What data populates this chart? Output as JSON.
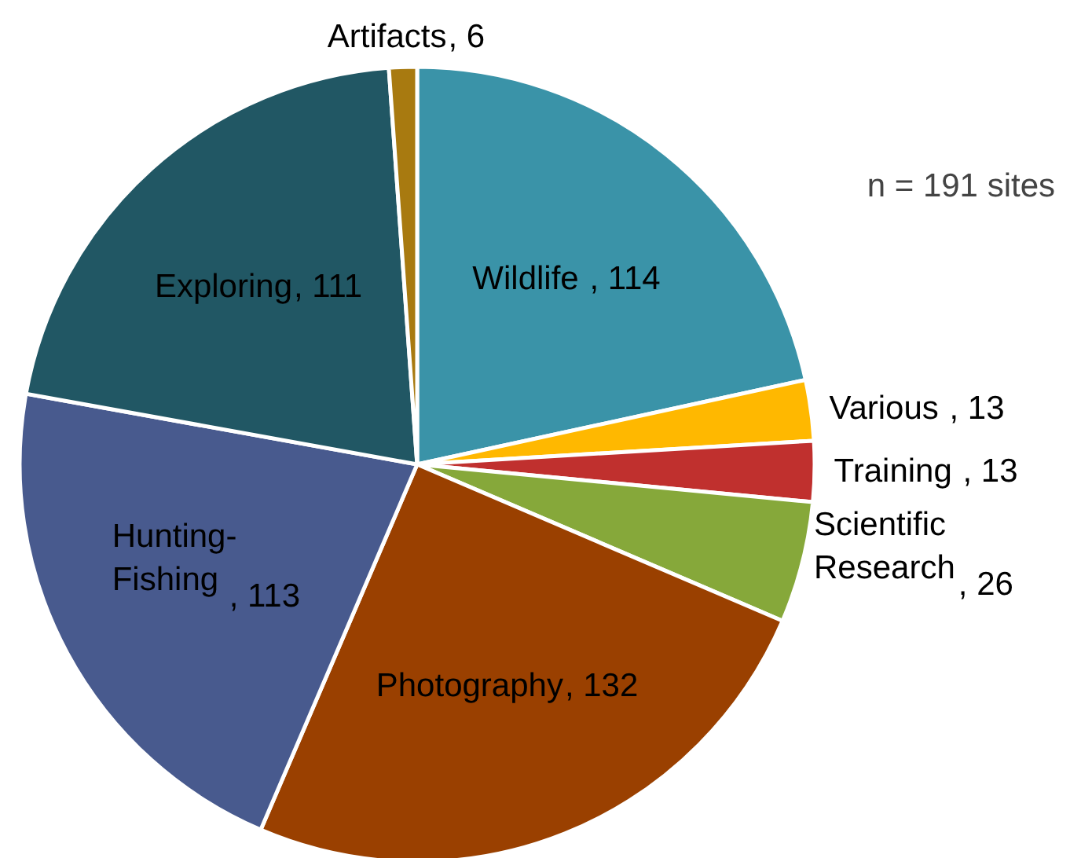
{
  "chart_data": {
    "type": "pie",
    "categories": [
      "Wildlife ",
      "Various ",
      "Training ",
      "Scientific Research",
      "Photography",
      "Hunting-Fishing",
      "Exploring",
      "Artifacts"
    ],
    "values": [
      114,
      13,
      13,
      26,
      132,
      113,
      111,
      6
    ],
    "colors": [
      "#3a93a8",
      "#ffb800",
      "#c0302e",
      "#86a83a",
      "#9a4000",
      "#485a8e",
      "#215764",
      "#a87a10"
    ],
    "value_labels": [
      ", 114",
      ", 13",
      ", 13",
      ", 26",
      ", 132",
      ", 113",
      ", 111",
      ", 6"
    ],
    "annotations": [
      "n = 191 sites"
    ]
  }
}
